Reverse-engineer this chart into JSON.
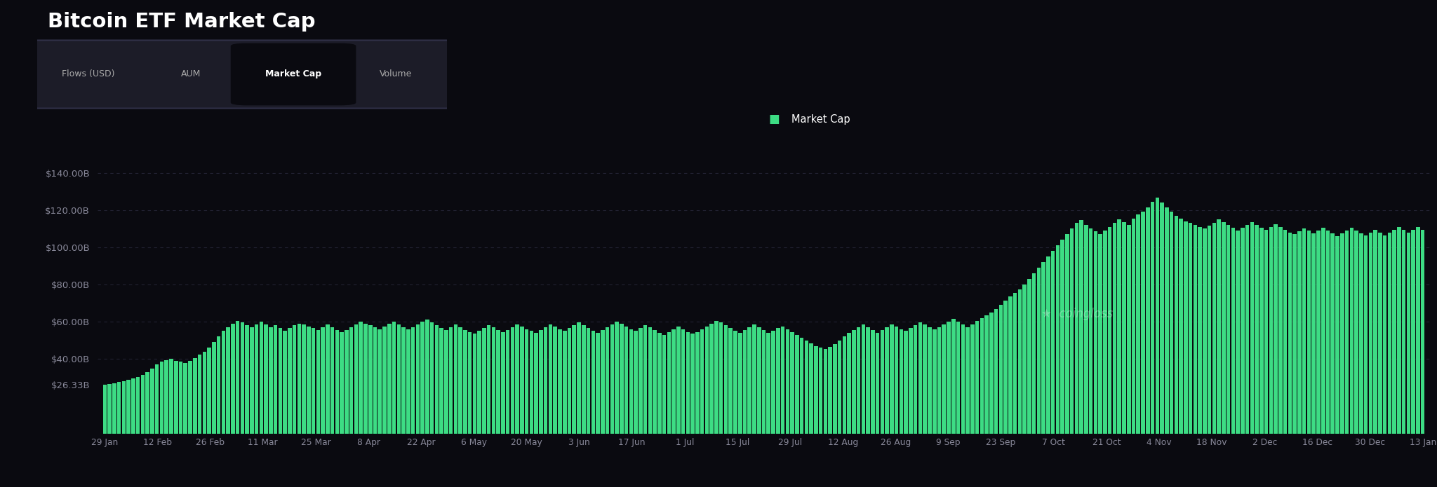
{
  "title": "Bitcoin ETF Market Cap",
  "background_color": "#0a0a10",
  "bar_color": "#3ddc84",
  "grid_color": "#222233",
  "text_color": "#ffffff",
  "tick_color": "#888899",
  "legend_label": "Market Cap",
  "tab_labels": [
    "Flows (USD)",
    "AUM",
    "Market Cap",
    "Volume"
  ],
  "active_tab": "Market Cap",
  "tab_bg_color": "#1c1c28",
  "tab_active_bg": "#0a0a10",
  "ytick_labels": [
    "$26.33B",
    "$40.00B",
    "$60.00B",
    "$80.00B",
    "$100.00B",
    "$120.00B",
    "$140.00B"
  ],
  "ytick_values": [
    26.33,
    40,
    60,
    80,
    100,
    120,
    140
  ],
  "xlabels": [
    "29 Jan",
    "12 Feb",
    "26 Feb",
    "11 Mar",
    "25 Mar",
    "8 Apr",
    "22 Apr",
    "6 May",
    "20 May",
    "3 Jun",
    "17 Jun",
    "1 Jul",
    "15 Jul",
    "29 Jul",
    "12 Aug",
    "26 Aug",
    "9 Sep",
    "23 Sep",
    "7 Oct",
    "21 Oct",
    "4 Nov",
    "18 Nov",
    "2 Dec",
    "16 Dec",
    "30 Dec",
    "13 Jan"
  ],
  "values": [
    26.33,
    26.5,
    27.0,
    27.5,
    28.0,
    28.8,
    29.5,
    30.5,
    31.5,
    33.0,
    35.0,
    37.0,
    38.5,
    39.5,
    40.0,
    39.0,
    38.5,
    38.0,
    39.0,
    40.5,
    42.5,
    44.0,
    46.0,
    49.0,
    52.0,
    55.0,
    57.0,
    59.0,
    60.5,
    59.5,
    58.0,
    57.0,
    58.5,
    60.0,
    58.5,
    57.0,
    58.0,
    56.5,
    55.0,
    56.5,
    58.0,
    59.0,
    58.5,
    57.5,
    56.5,
    55.5,
    57.0,
    58.5,
    57.0,
    55.5,
    54.5,
    55.5,
    57.0,
    58.5,
    60.0,
    59.0,
    58.0,
    57.0,
    56.0,
    57.5,
    59.0,
    60.0,
    58.5,
    57.0,
    56.0,
    57.0,
    58.5,
    60.0,
    61.0,
    59.5,
    58.0,
    56.5,
    55.5,
    57.0,
    58.5,
    57.0,
    55.5,
    54.5,
    53.5,
    55.0,
    56.5,
    58.0,
    57.0,
    55.5,
    54.5,
    55.5,
    57.0,
    58.5,
    57.5,
    56.0,
    55.0,
    54.0,
    55.5,
    57.0,
    58.5,
    57.5,
    56.0,
    55.0,
    56.5,
    58.0,
    59.5,
    58.0,
    56.5,
    55.0,
    54.0,
    55.5,
    57.0,
    58.5,
    60.0,
    59.0,
    57.5,
    56.0,
    55.0,
    56.5,
    58.0,
    57.0,
    55.5,
    54.0,
    53.0,
    54.5,
    56.0,
    57.5,
    56.0,
    54.5,
    53.5,
    54.5,
    56.0,
    57.5,
    59.0,
    60.5,
    59.5,
    58.0,
    56.5,
    55.0,
    54.0,
    55.5,
    57.0,
    58.5,
    57.0,
    55.5,
    54.0,
    55.0,
    56.5,
    57.5,
    56.0,
    54.5,
    53.0,
    51.5,
    50.0,
    48.5,
    47.0,
    46.0,
    45.5,
    46.5,
    48.0,
    50.0,
    52.0,
    54.0,
    55.5,
    57.0,
    58.5,
    57.0,
    55.5,
    54.0,
    55.5,
    57.0,
    58.5,
    57.5,
    56.0,
    55.0,
    56.5,
    58.0,
    59.5,
    58.5,
    57.0,
    56.0,
    57.0,
    58.5,
    60.0,
    61.5,
    60.0,
    58.5,
    57.0,
    58.5,
    60.5,
    62.0,
    63.5,
    65.0,
    67.0,
    69.0,
    71.5,
    73.5,
    75.5,
    77.5,
    80.0,
    83.0,
    86.0,
    89.0,
    92.0,
    95.0,
    98.0,
    101.0,
    104.0,
    107.0,
    110.0,
    113.0,
    114.5,
    112.0,
    110.0,
    108.5,
    107.0,
    109.0,
    111.0,
    113.0,
    115.0,
    113.5,
    112.0,
    115.5,
    117.5,
    119.0,
    121.5,
    124.5,
    126.5,
    124.0,
    121.5,
    119.0,
    117.0,
    115.5,
    114.0,
    113.0,
    112.0,
    111.0,
    110.0,
    111.5,
    113.0,
    115.0,
    113.5,
    112.0,
    110.5,
    109.0,
    110.5,
    112.0,
    113.5,
    112.0,
    110.5,
    109.5,
    111.0,
    112.5,
    111.0,
    109.5,
    108.0,
    107.0,
    108.5,
    110.0,
    109.0,
    107.5,
    109.0,
    110.5,
    109.0,
    107.5,
    106.0,
    107.5,
    109.0,
    110.5,
    109.0,
    107.5,
    106.5,
    108.0,
    109.5,
    108.0,
    106.5,
    108.0,
    109.5,
    111.0,
    109.5,
    108.0,
    109.5,
    111.0,
    109.5
  ]
}
